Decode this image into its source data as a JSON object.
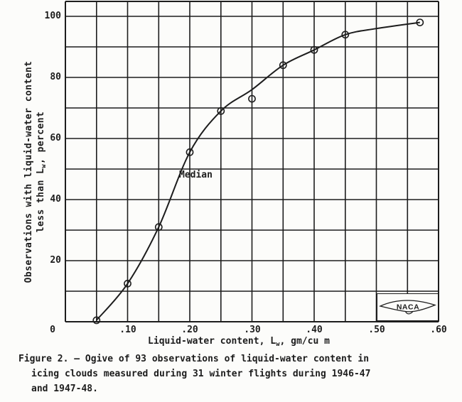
{
  "page": {
    "paper_color": "#fcfcfa",
    "ink_color": "#1d1d1d"
  },
  "chart_data": {
    "type": "line",
    "title": "",
    "xlabel": {
      "pre": "Liquid-water content, L",
      "sub": "w",
      "post": ", gm/cu m"
    },
    "ylabel": {
      "line1": "Observations with liquid-water content",
      "line2_pre": "less than L",
      "line2_sub": "w",
      "line2_post": ", percent"
    },
    "xlim": [
      0,
      0.6
    ],
    "ylim": [
      0,
      100
    ],
    "x_grid_step": 0.05,
    "y_grid_step": 10,
    "grid": "on",
    "legend": "none",
    "marker": "open-circle",
    "x_ticks": [
      {
        "value": 0.1,
        "label": ".10"
      },
      {
        "value": 0.2,
        "label": ".20"
      },
      {
        "value": 0.3,
        "label": ".30"
      },
      {
        "value": 0.4,
        "label": ".40"
      },
      {
        "value": 0.5,
        "label": ".50"
      },
      {
        "value": 0.6,
        "label": ".60"
      }
    ],
    "y_ticks": [
      {
        "value": 100,
        "label": "100"
      },
      {
        "value": 80,
        "label": "80"
      },
      {
        "value": 60,
        "label": "60"
      },
      {
        "value": 40,
        "label": "40"
      },
      {
        "value": 20,
        "label": "20"
      }
    ],
    "origin_label": "0",
    "points": [
      [
        0.05,
        0.5
      ],
      [
        0.1,
        12.5
      ],
      [
        0.15,
        31
      ],
      [
        0.2,
        55.5
      ],
      [
        0.25,
        69
      ],
      [
        0.3,
        73
      ],
      [
        0.35,
        84
      ],
      [
        0.4,
        89
      ],
      [
        0.45,
        94
      ],
      [
        0.57,
        98
      ]
    ],
    "curve_points": [
      [
        0.05,
        0.5
      ],
      [
        0.1,
        12.5
      ],
      [
        0.15,
        31
      ],
      [
        0.2,
        55.5
      ],
      [
        0.25,
        69
      ],
      [
        0.3,
        76
      ],
      [
        0.35,
        84
      ],
      [
        0.4,
        89
      ],
      [
        0.45,
        94
      ],
      [
        0.5,
        96
      ],
      [
        0.57,
        98
      ]
    ],
    "annotation": {
      "text": "Median",
      "x": 0.183,
      "y": 48
    }
  },
  "logo": {
    "label": "NACA"
  },
  "caption": {
    "line1": "Figure 2. – Ogive of 93 observations of liquid-water content in",
    "line2": "icing clouds measured during 31 winter flights during 1946-47",
    "line3": "and 1947-48."
  }
}
